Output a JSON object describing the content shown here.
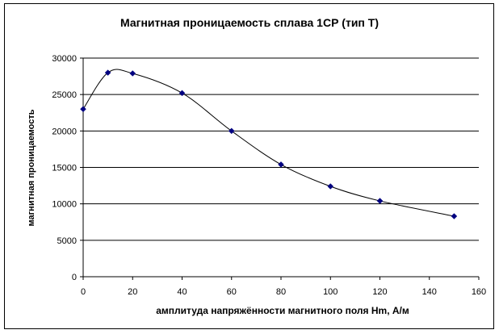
{
  "chart_data": {
    "type": "line",
    "title": "Магнитная проницаемость сплава 1СР (тип Т)",
    "xlabel": "амплитуда напряжённости магнитного поля Hm, А/м",
    "ylabel": "магнитная проницаемость",
    "xlim": [
      0,
      160
    ],
    "ylim": [
      0,
      30000
    ],
    "x_ticks": [
      "0",
      "20",
      "40",
      "60",
      "80",
      "100",
      "120",
      "140",
      "160"
    ],
    "y_ticks": [
      "0",
      "5000",
      "10000",
      "15000",
      "20000",
      "25000",
      "30000"
    ],
    "grid": "horizontal",
    "legend": "none",
    "series": [
      {
        "x": [
          0,
          10,
          20,
          40,
          60,
          80,
          100,
          120,
          150
        ],
        "y": [
          23000,
          28000,
          27900,
          25200,
          20000,
          15400,
          12400,
          10400,
          8300
        ],
        "color": "#000080"
      }
    ]
  }
}
